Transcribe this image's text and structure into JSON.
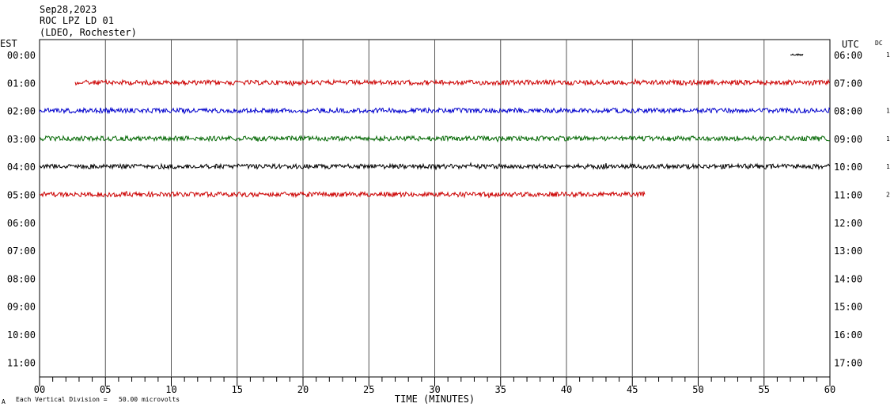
{
  "header": {
    "date": "Sep28,2023",
    "station": "ROC LPZ LD 01",
    "network": "(LDEO, Rochester)"
  },
  "chart_data": {
    "type": "line",
    "title": "",
    "xlabel": "TIME (MINUTES)",
    "left_axis_label": "EST",
    "right_axis_label": "UTC",
    "dc_label": "DC",
    "xlim": [
      0,
      60
    ],
    "x_ticks": [
      "00",
      "05",
      "10",
      "15",
      "20",
      "25",
      "30",
      "35",
      "40",
      "45",
      "50",
      "55",
      "60"
    ],
    "grid": true,
    "rows": [
      {
        "est": "00:00",
        "utc": "06:00",
        "dc": "1",
        "color": "#000000",
        "start_min": 57.0,
        "end_min": 58.0,
        "amplitude": 1.2
      },
      {
        "est": "01:00",
        "utc": "07:00",
        "dc": "",
        "color": "#cc0000",
        "start_min": 2.7,
        "end_min": 60,
        "amplitude": 3.0
      },
      {
        "est": "02:00",
        "utc": "08:00",
        "dc": "1",
        "color": "#0000cc",
        "start_min": 0,
        "end_min": 60,
        "amplitude": 3.0
      },
      {
        "est": "03:00",
        "utc": "09:00",
        "dc": "1",
        "color": "#006600",
        "start_min": 0,
        "end_min": 60,
        "amplitude": 3.0
      },
      {
        "est": "04:00",
        "utc": "10:00",
        "dc": "1",
        "color": "#000000",
        "start_min": 0,
        "end_min": 60,
        "amplitude": 3.0
      },
      {
        "est": "05:00",
        "utc": "11:00",
        "dc": "2",
        "color": "#cc0000",
        "start_min": 0,
        "end_min": 46.0,
        "amplitude": 3.0
      },
      {
        "est": "06:00",
        "utc": "12:00",
        "dc": "",
        "color": "#000000",
        "start_min": null,
        "end_min": null,
        "amplitude": 0
      },
      {
        "est": "07:00",
        "utc": "13:00",
        "dc": "",
        "color": "#000000",
        "start_min": null,
        "end_min": null,
        "amplitude": 0
      },
      {
        "est": "08:00",
        "utc": "14:00",
        "dc": "",
        "color": "#000000",
        "start_min": null,
        "end_min": null,
        "amplitude": 0
      },
      {
        "est": "09:00",
        "utc": "15:00",
        "dc": "",
        "color": "#000000",
        "start_min": null,
        "end_min": null,
        "amplitude": 0
      },
      {
        "est": "10:00",
        "utc": "16:00",
        "dc": "",
        "color": "#000000",
        "start_min": null,
        "end_min": null,
        "amplitude": 0
      },
      {
        "est": "11:00",
        "utc": "17:00",
        "dc": "",
        "color": "#000000",
        "start_min": null,
        "end_min": null,
        "amplitude": 0
      }
    ],
    "footnote_symbol": "A",
    "footnote": "Each Vertical Division =   50.00 microvolts"
  }
}
